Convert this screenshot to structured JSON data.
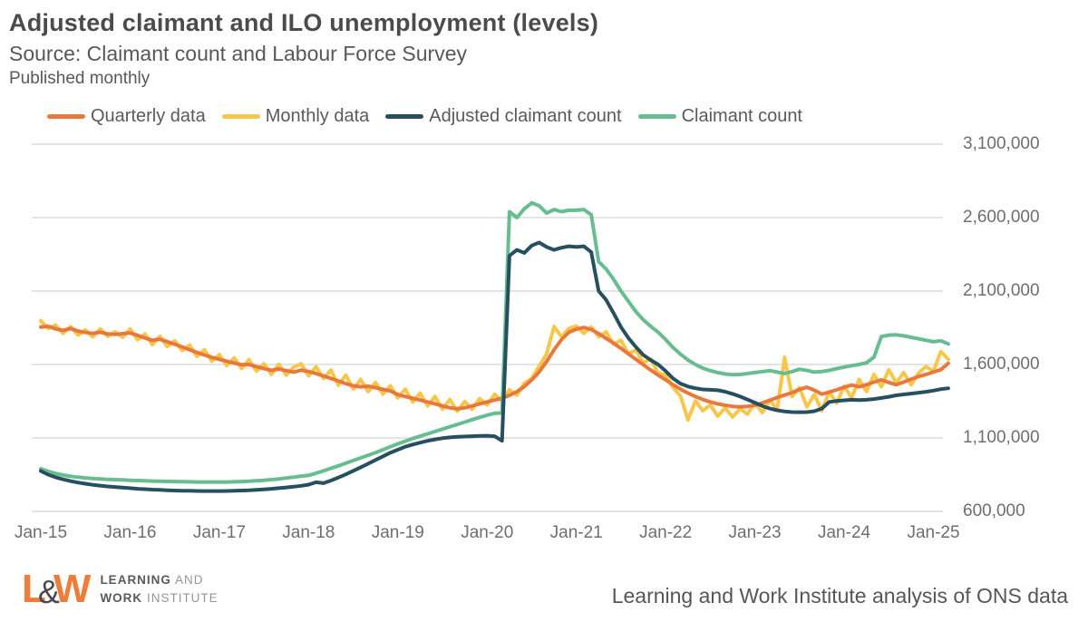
{
  "header": {
    "title": "Adjusted claimant and ILO unemployment (levels)",
    "source": "Source: Claimant count and Labour Force Survey",
    "frequency": "Published monthly"
  },
  "footer": {
    "logo": {
      "l": "L",
      "amp": "&",
      "w": "W",
      "line1_bold": "LEARNING",
      "line1_rest": " AND",
      "line2_bold": "WORK",
      "line2_rest": " INSTITUTE"
    },
    "attribution": "Learning and Work Institute analysis of ONS data"
  },
  "colors": {
    "quarterly": "#e8793a",
    "monthly": "#f7c64b",
    "adjusted_claimant": "#26505f",
    "claimant": "#68bd90",
    "gridline": "#e4e4e4",
    "title_text": "#4b4b4d",
    "axis_text": "#6d6e71",
    "logo_orange": "#ef7d3a"
  },
  "chart_data": {
    "type": "line",
    "title": "Adjusted claimant and ILO unemployment (levels)",
    "subtitle": "Source: Claimant count and Labour Force Survey",
    "note": "Published monthly",
    "xlabel": "",
    "ylabel": "",
    "grid": "horizontal",
    "legend_position": "top",
    "ylim": [
      600000,
      3100000
    ],
    "y_ticks": [
      600000,
      1100000,
      1600000,
      2100000,
      2600000,
      3100000
    ],
    "x_tick_labels": [
      "Jan-15",
      "Jan-16",
      "Jan-17",
      "Jan-18",
      "Jan-19",
      "Jan-20",
      "Jan-21",
      "Jan-22",
      "Jan-23",
      "Jan-24",
      "Jan-25"
    ],
    "x_start": "Jan-2015",
    "x_frequency": "monthly",
    "series": [
      {
        "name": "Quarterly data",
        "color": "#e8793a",
        "values": [
          1855000,
          1860000,
          1842000,
          1832000,
          1845000,
          1828000,
          1818000,
          1812000,
          1820000,
          1808000,
          1805000,
          1810000,
          1815000,
          1798000,
          1780000,
          1765000,
          1772000,
          1755000,
          1738000,
          1720000,
          1700000,
          1682000,
          1665000,
          1648000,
          1635000,
          1622000,
          1610000,
          1598000,
          1600000,
          1585000,
          1572000,
          1560000,
          1570000,
          1558000,
          1548000,
          1562000,
          1552000,
          1538000,
          1522000,
          1505000,
          1488000,
          1470000,
          1455000,
          1448000,
          1452000,
          1442000,
          1430000,
          1420000,
          1395000,
          1382000,
          1370000,
          1358000,
          1345000,
          1332000,
          1318000,
          1305000,
          1298000,
          1305000,
          1318000,
          1332000,
          1345000,
          1358000,
          1370000,
          1390000,
          1415000,
          1450000,
          1495000,
          1550000,
          1620000,
          1700000,
          1770000,
          1820000,
          1840000,
          1852000,
          1838000,
          1810000,
          1778000,
          1745000,
          1710000,
          1672000,
          1635000,
          1598000,
          1562000,
          1528000,
          1495000,
          1462000,
          1432000,
          1405000,
          1382000,
          1362000,
          1345000,
          1332000,
          1322000,
          1315000,
          1312000,
          1315000,
          1322000,
          1338000,
          1356000,
          1375000,
          1392000,
          1408000,
          1430000,
          1445000,
          1425000,
          1398000,
          1412000,
          1428000,
          1445000,
          1460000,
          1448000,
          1462000,
          1480000,
          1495000,
          1478000,
          1462000,
          1480000,
          1500000,
          1518000,
          1532000,
          1548000,
          1565000,
          1608000
        ]
      },
      {
        "name": "Monthly data",
        "color": "#f7c64b",
        "values": [
          1898000,
          1845000,
          1868000,
          1812000,
          1858000,
          1800000,
          1835000,
          1788000,
          1842000,
          1792000,
          1822000,
          1785000,
          1842000,
          1768000,
          1808000,
          1735000,
          1792000,
          1722000,
          1762000,
          1695000,
          1732000,
          1655000,
          1700000,
          1622000,
          1668000,
          1592000,
          1645000,
          1572000,
          1632000,
          1555000,
          1605000,
          1532000,
          1602000,
          1528000,
          1582000,
          1605000,
          1522000,
          1585000,
          1505000,
          1562000,
          1458000,
          1528000,
          1432000,
          1498000,
          1415000,
          1478000,
          1398000,
          1455000,
          1372000,
          1432000,
          1345000,
          1405000,
          1318000,
          1382000,
          1295000,
          1362000,
          1282000,
          1348000,
          1295000,
          1368000,
          1325000,
          1398000,
          1352000,
          1428000,
          1392000,
          1472000,
          1505000,
          1588000,
          1672000,
          1858000,
          1788000,
          1845000,
          1862000,
          1812000,
          1855000,
          1788000,
          1822000,
          1738000,
          1765000,
          1672000,
          1698000,
          1612000,
          1638000,
          1542000,
          1528000,
          1442000,
          1385000,
          1222000,
          1352000,
          1285000,
          1325000,
          1248000,
          1305000,
          1242000,
          1298000,
          1262000,
          1338000,
          1272000,
          1358000,
          1292000,
          1648000,
          1382000,
          1442000,
          1312000,
          1395000,
          1285000,
          1415000,
          1338000,
          1452000,
          1372000,
          1498000,
          1415000,
          1532000,
          1448000,
          1565000,
          1475000,
          1545000,
          1462000,
          1542000,
          1585000,
          1555000,
          1688000,
          1635000
        ]
      },
      {
        "name": "Adjusted claimant count",
        "color": "#26505f",
        "values": [
          875000,
          850000,
          832000,
          818000,
          806000,
          796000,
          788000,
          781000,
          775000,
          770000,
          766000,
          762000,
          758000,
          754000,
          751000,
          748000,
          746000,
          744000,
          742000,
          741000,
          740000,
          739000,
          738000,
          738000,
          738000,
          739000,
          740000,
          742000,
          744000,
          747000,
          750000,
          754000,
          758000,
          763000,
          768000,
          774000,
          782000,
          798000,
          792000,
          810000,
          830000,
          852000,
          876000,
          900000,
          925000,
          950000,
          975000,
          1000000,
          1020000,
          1040000,
          1055000,
          1068000,
          1080000,
          1090000,
          1098000,
          1104000,
          1108000,
          1110000,
          1112000,
          1114000,
          1115000,
          1112000,
          1080000,
          2340000,
          2380000,
          2360000,
          2410000,
          2430000,
          2400000,
          2380000,
          2395000,
          2405000,
          2400000,
          2405000,
          2365000,
          2100000,
          2040000,
          1950000,
          1855000,
          1780000,
          1720000,
          1665000,
          1630000,
          1600000,
          1555000,
          1505000,
          1470000,
          1450000,
          1438000,
          1430000,
          1428000,
          1425000,
          1415000,
          1400000,
          1382000,
          1362000,
          1340000,
          1318000,
          1300000,
          1288000,
          1280000,
          1276000,
          1275000,
          1276000,
          1282000,
          1300000,
          1345000,
          1352000,
          1356000,
          1360000,
          1358000,
          1360000,
          1365000,
          1372000,
          1380000,
          1390000,
          1396000,
          1402000,
          1408000,
          1414000,
          1422000,
          1432000,
          1438000
        ]
      },
      {
        "name": "Claimant count",
        "color": "#68bd90",
        "values": [
          890000,
          872000,
          858000,
          847000,
          839000,
          833000,
          828000,
          824000,
          821000,
          818000,
          816000,
          814000,
          812000,
          810000,
          808000,
          806000,
          805000,
          804000,
          803000,
          802000,
          801000,
          800000,
          800000,
          800000,
          800000,
          800000,
          801000,
          803000,
          805000,
          808000,
          812000,
          816000,
          821000,
          827000,
          833000,
          840000,
          845000,
          860000,
          876000,
          893000,
          910000,
          928000,
          946000,
          964000,
          982000,
          1000000,
          1020000,
          1040000,
          1060000,
          1078000,
          1096000,
          1112000,
          1128000,
          1144000,
          1160000,
          1176000,
          1192000,
          1208000,
          1225000,
          1240000,
          1255000,
          1268000,
          1270000,
          2640000,
          2600000,
          2660000,
          2700000,
          2680000,
          2630000,
          2655000,
          2640000,
          2650000,
          2650000,
          2655000,
          2620000,
          2300000,
          2250000,
          2180000,
          2100000,
          2030000,
          1960000,
          1905000,
          1860000,
          1820000,
          1770000,
          1715000,
          1670000,
          1630000,
          1600000,
          1575000,
          1558000,
          1545000,
          1535000,
          1530000,
          1532000,
          1538000,
          1545000,
          1552000,
          1558000,
          1548000,
          1538000,
          1552000,
          1568000,
          1560000,
          1548000,
          1552000,
          1560000,
          1572000,
          1582000,
          1592000,
          1600000,
          1612000,
          1650000,
          1790000,
          1800000,
          1802000,
          1795000,
          1785000,
          1775000,
          1765000,
          1755000,
          1762000,
          1740000
        ]
      }
    ]
  }
}
